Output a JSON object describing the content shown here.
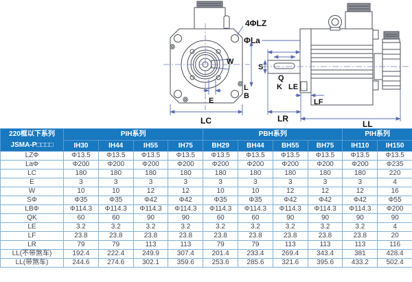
{
  "drawing": {
    "front_view": {
      "bolt_holes_label": "4ΦLZ",
      "pilot_dia_label": "ΦLa",
      "keyway_width_label": "W",
      "keyway_offset_label": "E",
      "frame_width_label": "LC"
    },
    "side_view": {
      "shaft_dia_label": "S",
      "key_q_label": "Q",
      "key_k_label": "K",
      "pilot_depth_label": "LE",
      "l_label": "L",
      "b_label": "B",
      "flange_thickness_label": "LF",
      "shaft_ext_label": "LR",
      "total_length_label": "LL"
    }
  },
  "table": {
    "corner": {
      "line1": "220框以下系列",
      "line2": "JSMA-P□□□□"
    },
    "groups": [
      {
        "label": "PIH系列",
        "span": 4
      },
      {
        "label": "PBH系列",
        "span": 4
      },
      {
        "label": "PIH系列",
        "span": 2
      }
    ],
    "columns": [
      "IH30",
      "IH44",
      "IH55",
      "IH75",
      "BH29",
      "BH44",
      "BH55",
      "BH75",
      "IH110",
      "IH150"
    ],
    "rows": [
      {
        "label": "LZΦ",
        "values": [
          "Φ13.5",
          "Φ13.5",
          "Φ13.5",
          "Φ13.5",
          "Φ13.5",
          "Φ13.5",
          "Φ13.5",
          "Φ13.5",
          "Φ13.5",
          "Φ13.5"
        ]
      },
      {
        "label": "LaΦ",
        "values": [
          "Φ200",
          "Φ200",
          "Φ200",
          "Φ200",
          "Φ200",
          "Φ200",
          "Φ200",
          "Φ200",
          "Φ200",
          "Φ235"
        ]
      },
      {
        "label": "LC",
        "values": [
          "180",
          "180",
          "180",
          "180",
          "180",
          "180",
          "180",
          "180",
          "180",
          "220"
        ]
      },
      {
        "label": "E",
        "values": [
          "3",
          "3",
          "3",
          "3",
          "3",
          "3",
          "3",
          "3",
          "3",
          "4"
        ]
      },
      {
        "label": "W",
        "values": [
          "10",
          "10",
          "12",
          "12",
          "10",
          "10",
          "12",
          "12",
          "12",
          "16"
        ]
      },
      {
        "label": "SΦ",
        "values": [
          "Φ35",
          "Φ35",
          "Φ42",
          "Φ42",
          "Φ35",
          "Φ35",
          "Φ42",
          "Φ42",
          "Φ42",
          "Φ55"
        ]
      },
      {
        "label": "LBΦ",
        "values": [
          "Φ114.3",
          "Φ114.3",
          "Φ114.3",
          "Φ114.3",
          "Φ114.3",
          "Φ114.3",
          "Φ114.3",
          "Φ114.3",
          "Φ114.3",
          "Φ200"
        ]
      },
      {
        "label": "QK",
        "values": [
          "60",
          "60",
          "90",
          "90",
          "60",
          "60",
          "90",
          "90",
          "90",
          "90"
        ]
      },
      {
        "label": "LE",
        "values": [
          "3.2",
          "3.2",
          "3.2",
          "3.2",
          "3.2",
          "3.2",
          "3.2",
          "3.2",
          "3.2",
          "4"
        ]
      },
      {
        "label": "LF",
        "values": [
          "23.8",
          "23.8",
          "23.8",
          "23.8",
          "23.8",
          "23.8",
          "23.8",
          "23.8",
          "23.8",
          "20"
        ]
      },
      {
        "label": "LR",
        "values": [
          "79",
          "79",
          "113",
          "113",
          "79",
          "79",
          "113",
          "113",
          "113",
          "116"
        ]
      },
      {
        "label": "LL(不带煞车)",
        "values": [
          "192.4",
          "222.4",
          "249.9",
          "307.4",
          "201.4",
          "233.4",
          "269.4",
          "343.4",
          "381",
          "428.4"
        ]
      },
      {
        "label": "LL(带煞车)",
        "values": [
          "244.6",
          "274.6",
          "302.1",
          "359.6",
          "253.6",
          "285.6",
          "321.6",
          "395.6",
          "433.2",
          "502.4"
        ]
      }
    ]
  },
  "colors": {
    "header_bg": "#1878c0",
    "table_border": "#7fb0d8",
    "dimension_line": "#5b6cb0",
    "text": "#3d4450"
  }
}
